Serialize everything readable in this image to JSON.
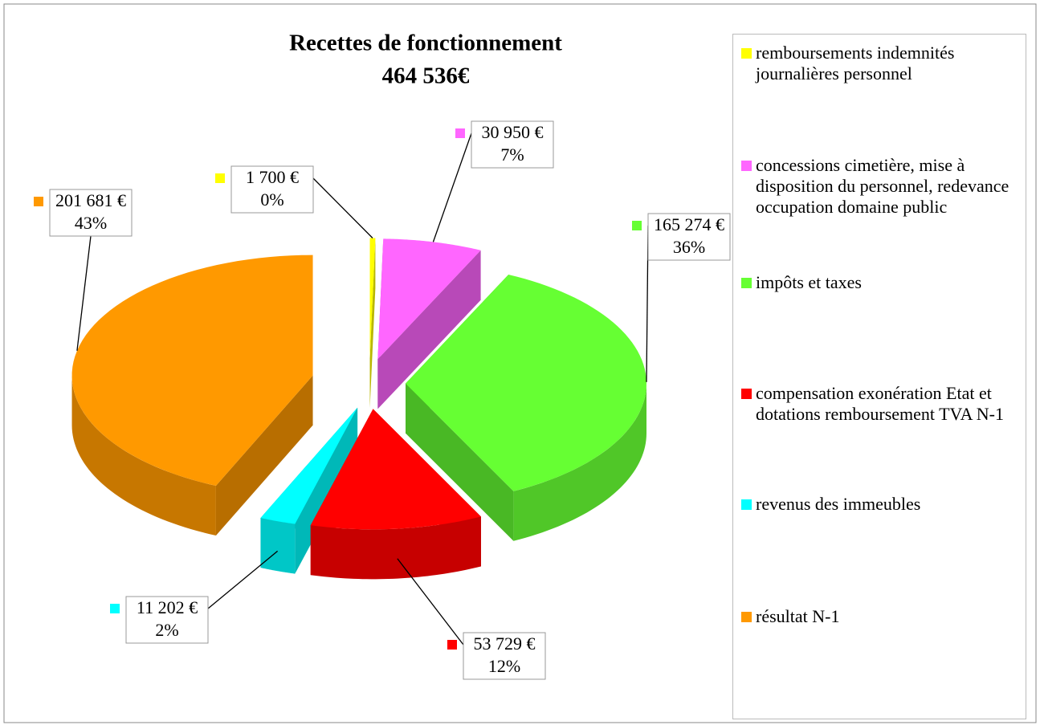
{
  "chart_data": {
    "type": "pie3d",
    "title": "Recettes de fonctionnement",
    "subtitle": "464 536€",
    "categories": [
      "remboursements indemnités journalières personnel",
      "concessions cimetière, mise à disposition du personnel, redevance occupation domaine public",
      "impôts et taxes",
      "compensation exonération Etat et dotations remboursement TVA N-1",
      "revenus des immeubles",
      "résultat N-1"
    ],
    "values": [
      1700,
      30950,
      165274,
      53729,
      11202,
      201681
    ],
    "value_labels": [
      "1 700 €",
      "30 950 €",
      "165 274 €",
      "53 729 €",
      "11 202 €",
      "201 681 €"
    ],
    "percent_labels": [
      "0%",
      "7%",
      "36%",
      "12%",
      "2%",
      "43%"
    ],
    "colors": [
      "#ffff00",
      "#ff66ff",
      "#66ff33",
      "#ff0000",
      "#00ffff",
      "#ff9900"
    ],
    "legend": "right"
  }
}
